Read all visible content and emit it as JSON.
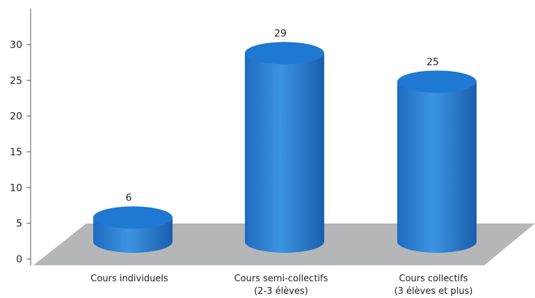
{
  "chart_data": {
    "type": "bar",
    "style": "3d-cylinder",
    "categories": [
      [
        "Cours individuels"
      ],
      [
        "Cours semi-collectifs",
        "(2-3 élèves)"
      ],
      [
        "Cours collectifs",
        "(3 élèves et plus)"
      ]
    ],
    "values": [
      6,
      29,
      25
    ],
    "data_labels": [
      "6",
      "29",
      "25"
    ],
    "y_ticks": [
      0,
      5,
      10,
      15,
      20,
      25,
      30
    ],
    "ylim": [
      0,
      30
    ],
    "grid": false,
    "legend": "none",
    "title": "",
    "xlabel": "",
    "ylabel": "",
    "colors": {
      "bar": "#2c7fd0",
      "bar_light": "#5aa6e8",
      "bar_dark": "#1a5fae",
      "top": "#1f78d1",
      "floor": "#b5b6b8"
    }
  }
}
